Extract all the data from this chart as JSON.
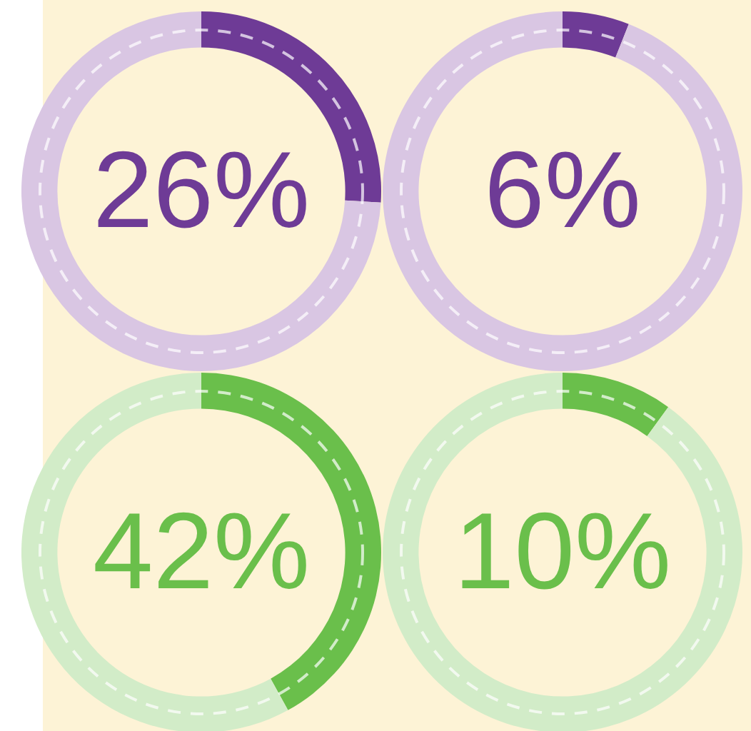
{
  "chart_data": [
    {
      "type": "donut",
      "categories": [
        null,
        null
      ],
      "values": [
        26,
        74
      ],
      "colors": [
        "#6e3b96",
        "#d9c6e3"
      ],
      "value_labels": [
        "26%",
        null
      ]
    },
    {
      "type": "donut",
      "categories": [
        null,
        null
      ],
      "values": [
        6,
        94
      ],
      "colors": [
        "#6e3b96",
        "#d9c6e3"
      ],
      "value_labels": [
        "6%",
        null
      ]
    },
    {
      "type": "donut",
      "categories": [
        null,
        null
      ],
      "values": [
        42,
        58
      ],
      "colors": [
        "#6abf4b",
        "#d2ecc8"
      ],
      "value_labels": [
        "42%",
        null
      ]
    },
    {
      "type": "donut",
      "categories": [
        null,
        null
      ],
      "values": [
        10,
        90
      ],
      "colors": [
        "#6abf4b",
        "#d2ecc8"
      ],
      "value_labels": [
        "10%",
        null
      ]
    }
  ]
}
